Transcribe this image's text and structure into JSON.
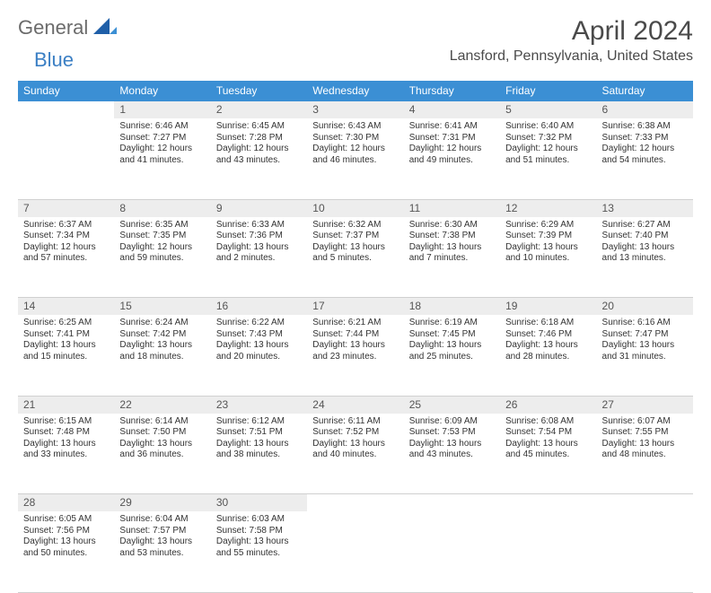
{
  "brand": {
    "part1": "General",
    "part2": "Blue"
  },
  "title": "April 2024",
  "location": "Lansford, Pennsylvania, United States",
  "colors": {
    "header_bg": "#3b8fd4",
    "daynum_bg": "#ededed",
    "rule": "#3b8fd4"
  },
  "day_headers": [
    "Sunday",
    "Monday",
    "Tuesday",
    "Wednesday",
    "Thursday",
    "Friday",
    "Saturday"
  ],
  "weeks": [
    [
      null,
      {
        "n": "1",
        "sr": "6:46 AM",
        "ss": "7:27 PM",
        "dl": "12 hours and 41 minutes."
      },
      {
        "n": "2",
        "sr": "6:45 AM",
        "ss": "7:28 PM",
        "dl": "12 hours and 43 minutes."
      },
      {
        "n": "3",
        "sr": "6:43 AM",
        "ss": "7:30 PM",
        "dl": "12 hours and 46 minutes."
      },
      {
        "n": "4",
        "sr": "6:41 AM",
        "ss": "7:31 PM",
        "dl": "12 hours and 49 minutes."
      },
      {
        "n": "5",
        "sr": "6:40 AM",
        "ss": "7:32 PM",
        "dl": "12 hours and 51 minutes."
      },
      {
        "n": "6",
        "sr": "6:38 AM",
        "ss": "7:33 PM",
        "dl": "12 hours and 54 minutes."
      }
    ],
    [
      {
        "n": "7",
        "sr": "6:37 AM",
        "ss": "7:34 PM",
        "dl": "12 hours and 57 minutes."
      },
      {
        "n": "8",
        "sr": "6:35 AM",
        "ss": "7:35 PM",
        "dl": "12 hours and 59 minutes."
      },
      {
        "n": "9",
        "sr": "6:33 AM",
        "ss": "7:36 PM",
        "dl": "13 hours and 2 minutes."
      },
      {
        "n": "10",
        "sr": "6:32 AM",
        "ss": "7:37 PM",
        "dl": "13 hours and 5 minutes."
      },
      {
        "n": "11",
        "sr": "6:30 AM",
        "ss": "7:38 PM",
        "dl": "13 hours and 7 minutes."
      },
      {
        "n": "12",
        "sr": "6:29 AM",
        "ss": "7:39 PM",
        "dl": "13 hours and 10 minutes."
      },
      {
        "n": "13",
        "sr": "6:27 AM",
        "ss": "7:40 PM",
        "dl": "13 hours and 13 minutes."
      }
    ],
    [
      {
        "n": "14",
        "sr": "6:25 AM",
        "ss": "7:41 PM",
        "dl": "13 hours and 15 minutes."
      },
      {
        "n": "15",
        "sr": "6:24 AM",
        "ss": "7:42 PM",
        "dl": "13 hours and 18 minutes."
      },
      {
        "n": "16",
        "sr": "6:22 AM",
        "ss": "7:43 PM",
        "dl": "13 hours and 20 minutes."
      },
      {
        "n": "17",
        "sr": "6:21 AM",
        "ss": "7:44 PM",
        "dl": "13 hours and 23 minutes."
      },
      {
        "n": "18",
        "sr": "6:19 AM",
        "ss": "7:45 PM",
        "dl": "13 hours and 25 minutes."
      },
      {
        "n": "19",
        "sr": "6:18 AM",
        "ss": "7:46 PM",
        "dl": "13 hours and 28 minutes."
      },
      {
        "n": "20",
        "sr": "6:16 AM",
        "ss": "7:47 PM",
        "dl": "13 hours and 31 minutes."
      }
    ],
    [
      {
        "n": "21",
        "sr": "6:15 AM",
        "ss": "7:48 PM",
        "dl": "13 hours and 33 minutes."
      },
      {
        "n": "22",
        "sr": "6:14 AM",
        "ss": "7:50 PM",
        "dl": "13 hours and 36 minutes."
      },
      {
        "n": "23",
        "sr": "6:12 AM",
        "ss": "7:51 PM",
        "dl": "13 hours and 38 minutes."
      },
      {
        "n": "24",
        "sr": "6:11 AM",
        "ss": "7:52 PM",
        "dl": "13 hours and 40 minutes."
      },
      {
        "n": "25",
        "sr": "6:09 AM",
        "ss": "7:53 PM",
        "dl": "13 hours and 43 minutes."
      },
      {
        "n": "26",
        "sr": "6:08 AM",
        "ss": "7:54 PM",
        "dl": "13 hours and 45 minutes."
      },
      {
        "n": "27",
        "sr": "6:07 AM",
        "ss": "7:55 PM",
        "dl": "13 hours and 48 minutes."
      }
    ],
    [
      {
        "n": "28",
        "sr": "6:05 AM",
        "ss": "7:56 PM",
        "dl": "13 hours and 50 minutes."
      },
      {
        "n": "29",
        "sr": "6:04 AM",
        "ss": "7:57 PM",
        "dl": "13 hours and 53 minutes."
      },
      {
        "n": "30",
        "sr": "6:03 AM",
        "ss": "7:58 PM",
        "dl": "13 hours and 55 minutes."
      },
      null,
      null,
      null,
      null
    ]
  ],
  "labels": {
    "sunrise": "Sunrise:",
    "sunset": "Sunset:",
    "daylight": "Daylight:"
  }
}
